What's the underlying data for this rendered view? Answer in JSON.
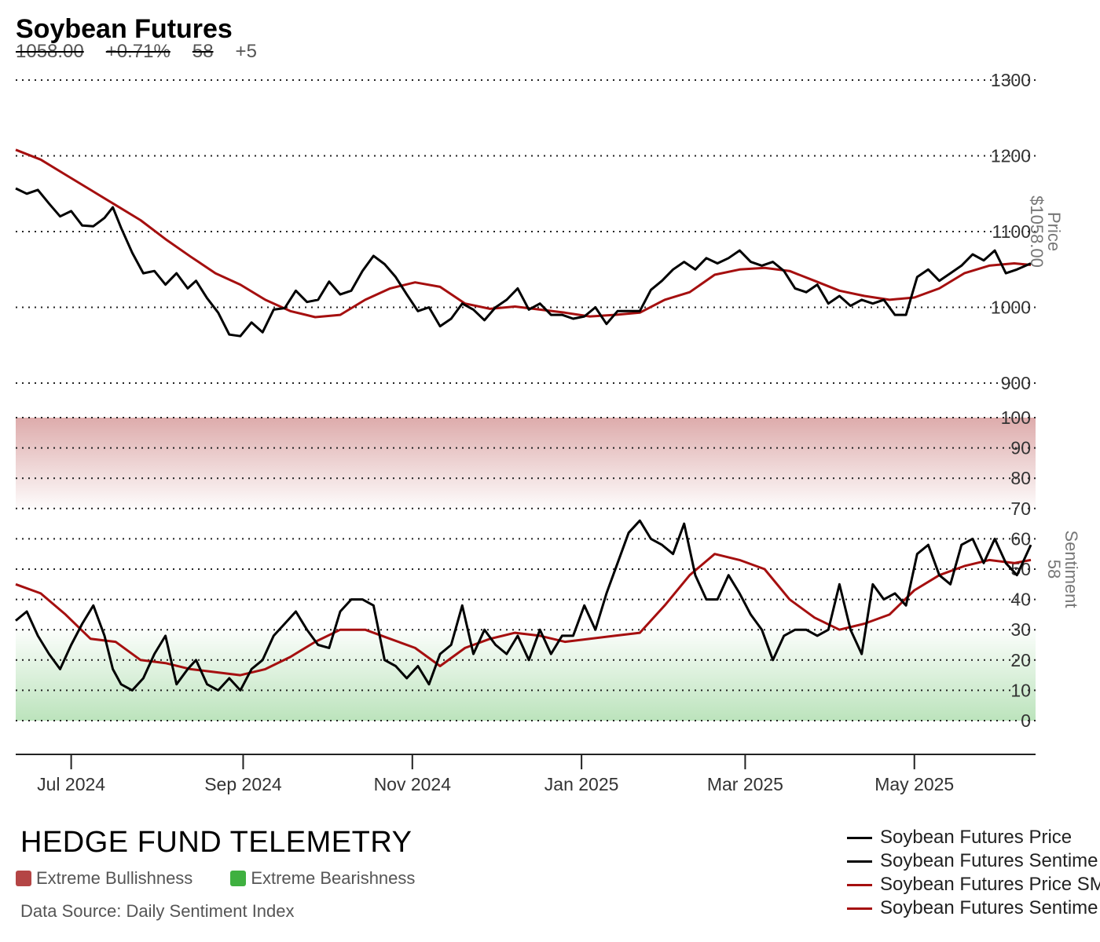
{
  "header": {
    "title": "Soybean Futures",
    "price": "1058.00",
    "change_pct": "+0.71%",
    "sentiment": "58",
    "sentiment_change": "+5"
  },
  "footer": {
    "brand": "HEDGE FUND TELEMETRY",
    "legend_bull": "Extreme Bullishness",
    "legend_bear": "Extreme Bearishness",
    "source": "Data Source: Daily Sentiment Index"
  },
  "colors": {
    "price": "#000000",
    "sma": "#a50f0f",
    "bull_zone": "#b44545",
    "bear_zone": "#3fb040",
    "grid": "#222222"
  },
  "legend": [
    {
      "label": "Soybean Futures Price",
      "color": "#000000"
    },
    {
      "label": "Soybean Futures Sentime",
      "color": "#000000"
    },
    {
      "label": "Soybean Futures Price SM",
      "color": "#a50f0f"
    },
    {
      "label": "Soybean Futures Sentime",
      "color": "#a50f0f"
    }
  ],
  "price_axis": {
    "title": "Price",
    "value_label": "$1058.00",
    "ticks": [
      900,
      1000,
      1100,
      1200,
      1300
    ],
    "range": [
      900,
      1300
    ]
  },
  "sentiment_axis": {
    "title": "Sentiment",
    "value_label": "58",
    "ticks": [
      0,
      10,
      20,
      30,
      40,
      50,
      60,
      70,
      80,
      90,
      100
    ],
    "range": [
      0,
      100
    ]
  },
  "x_axis": {
    "ticks": [
      "Jul 2024",
      "Sep 2024",
      "Nov 2024",
      "Jan 2025",
      "Mar 2025",
      "May 2025"
    ]
  },
  "chart_data": [
    {
      "type": "line",
      "panel": "price",
      "x_range": [
        "2024-06-11",
        "2025-06-12"
      ],
      "ylim": [
        900,
        1300
      ],
      "series": [
        {
          "name": "Soybean Futures Price",
          "x": [
            "2024-06-11",
            "2024-06-15",
            "2024-06-19",
            "2024-06-23",
            "2024-06-27",
            "2024-07-01",
            "2024-07-05",
            "2024-07-09",
            "2024-07-13",
            "2024-07-16",
            "2024-07-19",
            "2024-07-23",
            "2024-07-27",
            "2024-07-31",
            "2024-08-04",
            "2024-08-08",
            "2024-08-12",
            "2024-08-15",
            "2024-08-19",
            "2024-08-23",
            "2024-08-27",
            "2024-08-31",
            "2024-09-04",
            "2024-09-08",
            "2024-09-12",
            "2024-09-16",
            "2024-09-20",
            "2024-09-24",
            "2024-09-28",
            "2024-10-02",
            "2024-10-06",
            "2024-10-10",
            "2024-10-14",
            "2024-10-18",
            "2024-10-22",
            "2024-10-26",
            "2024-10-30",
            "2024-11-03",
            "2024-11-07",
            "2024-11-11",
            "2024-11-15",
            "2024-11-19",
            "2024-11-23",
            "2024-11-27",
            "2024-12-01",
            "2024-12-05",
            "2024-12-09",
            "2024-12-13",
            "2024-12-17",
            "2024-12-21",
            "2024-12-25",
            "2024-12-29",
            "2025-01-02",
            "2025-01-06",
            "2025-01-10",
            "2025-01-14",
            "2025-01-18",
            "2025-01-22",
            "2025-01-26",
            "2025-01-30",
            "2025-02-03",
            "2025-02-07",
            "2025-02-11",
            "2025-02-15",
            "2025-02-19",
            "2025-02-23",
            "2025-02-27",
            "2025-03-03",
            "2025-03-07",
            "2025-03-11",
            "2025-03-15",
            "2025-03-19",
            "2025-03-23",
            "2025-03-27",
            "2025-03-31",
            "2025-04-04",
            "2025-04-08",
            "2025-04-12",
            "2025-04-16",
            "2025-04-20",
            "2025-04-24",
            "2025-04-28",
            "2025-05-02",
            "2025-05-06",
            "2025-05-10",
            "2025-05-14",
            "2025-05-18",
            "2025-05-22",
            "2025-05-26",
            "2025-05-30",
            "2025-06-03",
            "2025-06-07",
            "2025-06-12"
          ],
          "values": [
            1157,
            1150,
            1155,
            1137,
            1120,
            1127,
            1108,
            1107,
            1118,
            1132,
            1105,
            1072,
            1045,
            1048,
            1030,
            1045,
            1025,
            1035,
            1012,
            993,
            964,
            962,
            980,
            967,
            997,
            999,
            1022,
            1007,
            1010,
            1034,
            1017,
            1022,
            1048,
            1068,
            1057,
            1040,
            1017,
            995,
            1000,
            975,
            985,
            1005,
            997,
            983,
            1000,
            1010,
            1025,
            997,
            1005,
            990,
            990,
            985,
            988,
            1000,
            978,
            995,
            995,
            995,
            1023,
            1035,
            1050,
            1060,
            1050,
            1065,
            1058,
            1065,
            1075,
            1060,
            1055,
            1060,
            1048,
            1025,
            1020,
            1030,
            1005,
            1015,
            1002,
            1010,
            1005,
            1010,
            990,
            990,
            1040,
            1050,
            1035,
            1045,
            1055,
            1070,
            1062,
            1075,
            1045,
            1050,
            1058
          ],
          "color": "#000000"
        },
        {
          "name": "Soybean Futures Price SM",
          "x": [
            "2024-06-11",
            "2024-06-20",
            "2024-06-29",
            "2024-07-08",
            "2024-07-17",
            "2024-07-26",
            "2024-08-04",
            "2024-08-13",
            "2024-08-22",
            "2024-08-31",
            "2024-09-09",
            "2024-09-18",
            "2024-09-27",
            "2024-10-06",
            "2024-10-15",
            "2024-10-24",
            "2024-11-02",
            "2024-11-11",
            "2024-11-20",
            "2024-11-29",
            "2024-12-08",
            "2024-12-17",
            "2024-12-26",
            "2025-01-04",
            "2025-01-13",
            "2025-01-22",
            "2025-01-31",
            "2025-02-09",
            "2025-02-18",
            "2025-02-27",
            "2025-03-08",
            "2025-03-17",
            "2025-03-26",
            "2025-04-04",
            "2025-04-13",
            "2025-04-22",
            "2025-05-01",
            "2025-05-10",
            "2025-05-19",
            "2025-05-28",
            "2025-06-06",
            "2025-06-12"
          ],
          "values": [
            1208,
            1195,
            1175,
            1155,
            1135,
            1115,
            1090,
            1067,
            1045,
            1030,
            1010,
            995,
            987,
            990,
            1010,
            1025,
            1033,
            1027,
            1005,
            998,
            1001,
            997,
            993,
            988,
            990,
            993,
            1010,
            1020,
            1043,
            1050,
            1052,
            1048,
            1035,
            1022,
            1015,
            1010,
            1013,
            1025,
            1045,
            1055,
            1058,
            1056
          ],
          "color": "#a50f0f"
        }
      ]
    },
    {
      "type": "line",
      "panel": "sentiment",
      "x_range": [
        "2024-06-11",
        "2025-06-12"
      ],
      "ylim": [
        0,
        100
      ],
      "series": [
        {
          "name": "Soybean Futures Sentime",
          "x": [
            "2024-06-11",
            "2024-06-15",
            "2024-06-19",
            "2024-06-23",
            "2024-06-27",
            "2024-07-01",
            "2024-07-05",
            "2024-07-09",
            "2024-07-13",
            "2024-07-16",
            "2024-07-19",
            "2024-07-23",
            "2024-07-27",
            "2024-07-31",
            "2024-08-04",
            "2024-08-08",
            "2024-08-12",
            "2024-08-15",
            "2024-08-19",
            "2024-08-23",
            "2024-08-27",
            "2024-08-31",
            "2024-09-04",
            "2024-09-08",
            "2024-09-12",
            "2024-09-16",
            "2024-09-20",
            "2024-09-24",
            "2024-09-28",
            "2024-10-02",
            "2024-10-06",
            "2024-10-10",
            "2024-10-14",
            "2024-10-18",
            "2024-10-22",
            "2024-10-26",
            "2024-10-30",
            "2024-11-03",
            "2024-11-07",
            "2024-11-11",
            "2024-11-15",
            "2024-11-19",
            "2024-11-23",
            "2024-11-27",
            "2024-12-01",
            "2024-12-05",
            "2024-12-09",
            "2024-12-13",
            "2024-12-17",
            "2024-12-21",
            "2024-12-25",
            "2024-12-29",
            "2025-01-02",
            "2025-01-06",
            "2025-01-10",
            "2025-01-14",
            "2025-01-18",
            "2025-01-22",
            "2025-01-26",
            "2025-01-30",
            "2025-02-03",
            "2025-02-07",
            "2025-02-11",
            "2025-02-15",
            "2025-02-19",
            "2025-02-23",
            "2025-02-27",
            "2025-03-03",
            "2025-03-07",
            "2025-03-11",
            "2025-03-15",
            "2025-03-19",
            "2025-03-23",
            "2025-03-27",
            "2025-03-31",
            "2025-04-04",
            "2025-04-08",
            "2025-04-12",
            "2025-04-16",
            "2025-04-20",
            "2025-04-24",
            "2025-04-28",
            "2025-05-02",
            "2025-05-06",
            "2025-05-10",
            "2025-05-14",
            "2025-05-18",
            "2025-05-22",
            "2025-05-26",
            "2025-05-30",
            "2025-06-03",
            "2025-06-07",
            "2025-06-12"
          ],
          "values": [
            33,
            36,
            28,
            22,
            17,
            25,
            32,
            38,
            28,
            17,
            12,
            10,
            14,
            22,
            28,
            12,
            17,
            20,
            12,
            10,
            14,
            10,
            17,
            20,
            28,
            32,
            36,
            30,
            25,
            24,
            36,
            40,
            40,
            38,
            20,
            18,
            14,
            18,
            12,
            22,
            25,
            38,
            22,
            30,
            25,
            22,
            28,
            20,
            30,
            22,
            28,
            28,
            38,
            30,
            42,
            52,
            62,
            66,
            60,
            58,
            55,
            65,
            48,
            40,
            40,
            48,
            42,
            35,
            30,
            20,
            28,
            30,
            30,
            28,
            30,
            45,
            30,
            22,
            45,
            40,
            42,
            38,
            55,
            58,
            48,
            45,
            58,
            60,
            52,
            60,
            52,
            48,
            58
          ],
          "color": "#000000"
        },
        {
          "name": "Soybean Futures Sentime",
          "x": [
            "2024-06-11",
            "2024-06-20",
            "2024-06-29",
            "2024-07-08",
            "2024-07-17",
            "2024-07-26",
            "2024-08-04",
            "2024-08-13",
            "2024-08-22",
            "2024-08-31",
            "2024-09-09",
            "2024-09-18",
            "2024-09-27",
            "2024-10-06",
            "2024-10-15",
            "2024-10-24",
            "2024-11-02",
            "2024-11-11",
            "2024-11-20",
            "2024-11-29",
            "2024-12-08",
            "2024-12-17",
            "2024-12-26",
            "2025-01-04",
            "2025-01-13",
            "2025-01-22",
            "2025-01-31",
            "2025-02-09",
            "2025-02-18",
            "2025-02-27",
            "2025-03-08",
            "2025-03-17",
            "2025-03-26",
            "2025-04-04",
            "2025-04-13",
            "2025-04-22",
            "2025-05-01",
            "2025-05-10",
            "2025-05-19",
            "2025-05-28",
            "2025-06-06",
            "2025-06-12"
          ],
          "values": [
            45,
            42,
            35,
            27,
            26,
            20,
            19,
            17,
            16,
            15,
            17,
            21,
            26,
            30,
            30,
            27,
            24,
            18,
            24,
            27,
            29,
            28,
            26,
            27,
            28,
            29,
            38,
            48,
            55,
            53,
            50,
            40,
            34,
            30,
            32,
            35,
            43,
            48,
            51,
            53,
            52,
            53
          ],
          "color": "#a50f0f"
        }
      ]
    }
  ]
}
